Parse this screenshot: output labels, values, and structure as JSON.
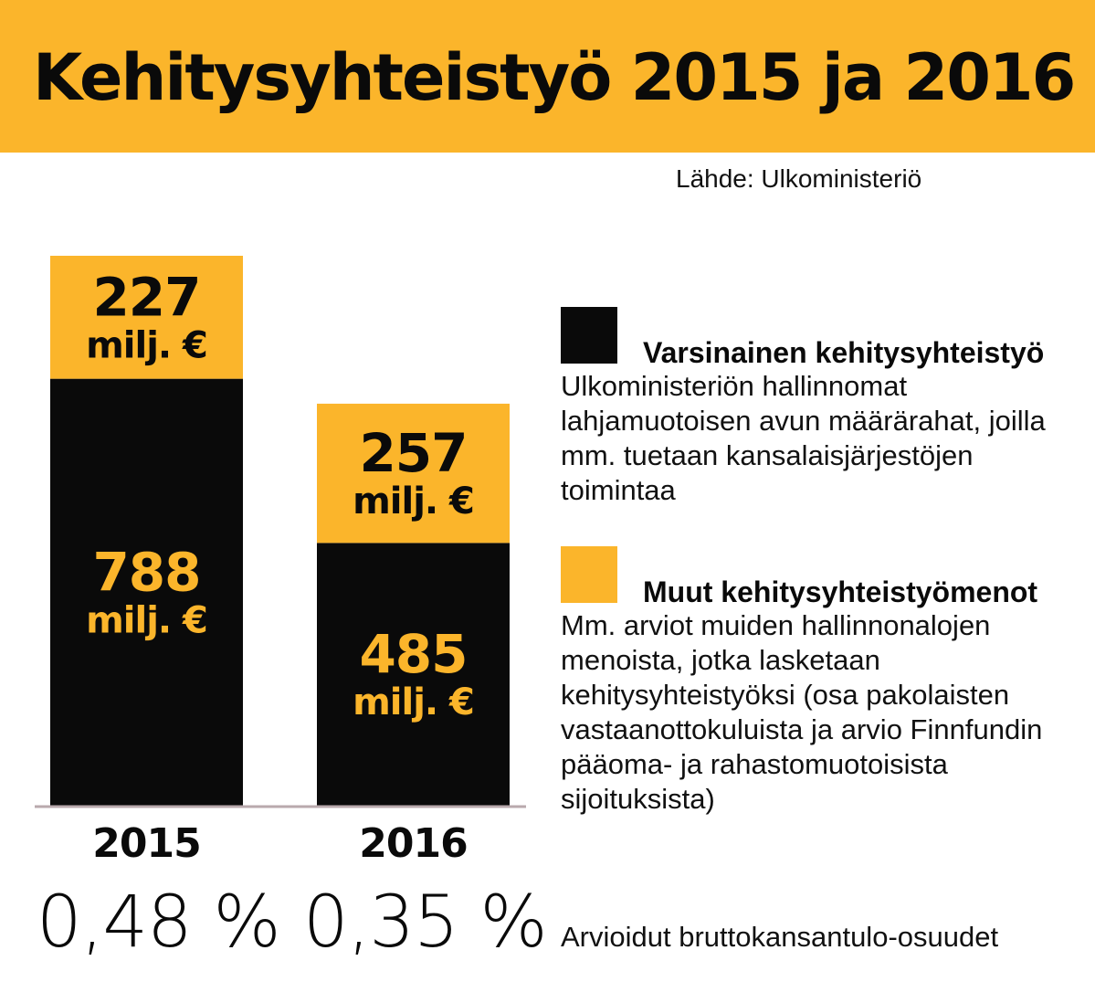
{
  "header": {
    "title": "Kehitysyhteistyö 2015 ja 2016",
    "source": "Lähde: Ulkoministeriö"
  },
  "colors": {
    "accent": "#fbb52b",
    "dark": "#0a0a0a",
    "axis": "#b9a9ad"
  },
  "chart_data": {
    "type": "bar",
    "stacked": true,
    "categories": [
      "2015",
      "2016"
    ],
    "unit": "milj. €",
    "series": [
      {
        "name": "Varsinainen kehitysyhteistyö",
        "color": "#0a0a0a",
        "label_color": "#fbb52b",
        "values": [
          788,
          485
        ]
      },
      {
        "name": "Muut kehitysyhteistyömenot",
        "color": "#fbb52b",
        "label_color": "#0a0a0a",
        "values": [
          227,
          257
        ]
      }
    ],
    "ylim": [
      0,
      1015
    ],
    "grid": false,
    "legend_position": "right"
  },
  "legend": [
    {
      "title": "Varsinainen kehitysyhteistyö",
      "color": "#0a0a0a",
      "description": "Ulkoministeriön hallinnomat lahjamuotoisen avun määrärahat, joilla mm. tuetaan kansalaisjärjestöjen toimintaa"
    },
    {
      "title": "Muut kehitysyhteistyömenot",
      "color": "#fbb52b",
      "description": "Mm. arviot muiden hallinnonalojen menoista, jotka lasketaan kehitysyhteistyöksi (osa pakolaisten vastaanottokuluista ja arvio Finnfundin pääoma- ja rahastomuotoisista sijoituksista)"
    }
  ],
  "gni_shares": {
    "values": [
      "0,48 %",
      "0,35 %"
    ],
    "caption": "Arvioidut bruttokansantulo-osuudet"
  }
}
